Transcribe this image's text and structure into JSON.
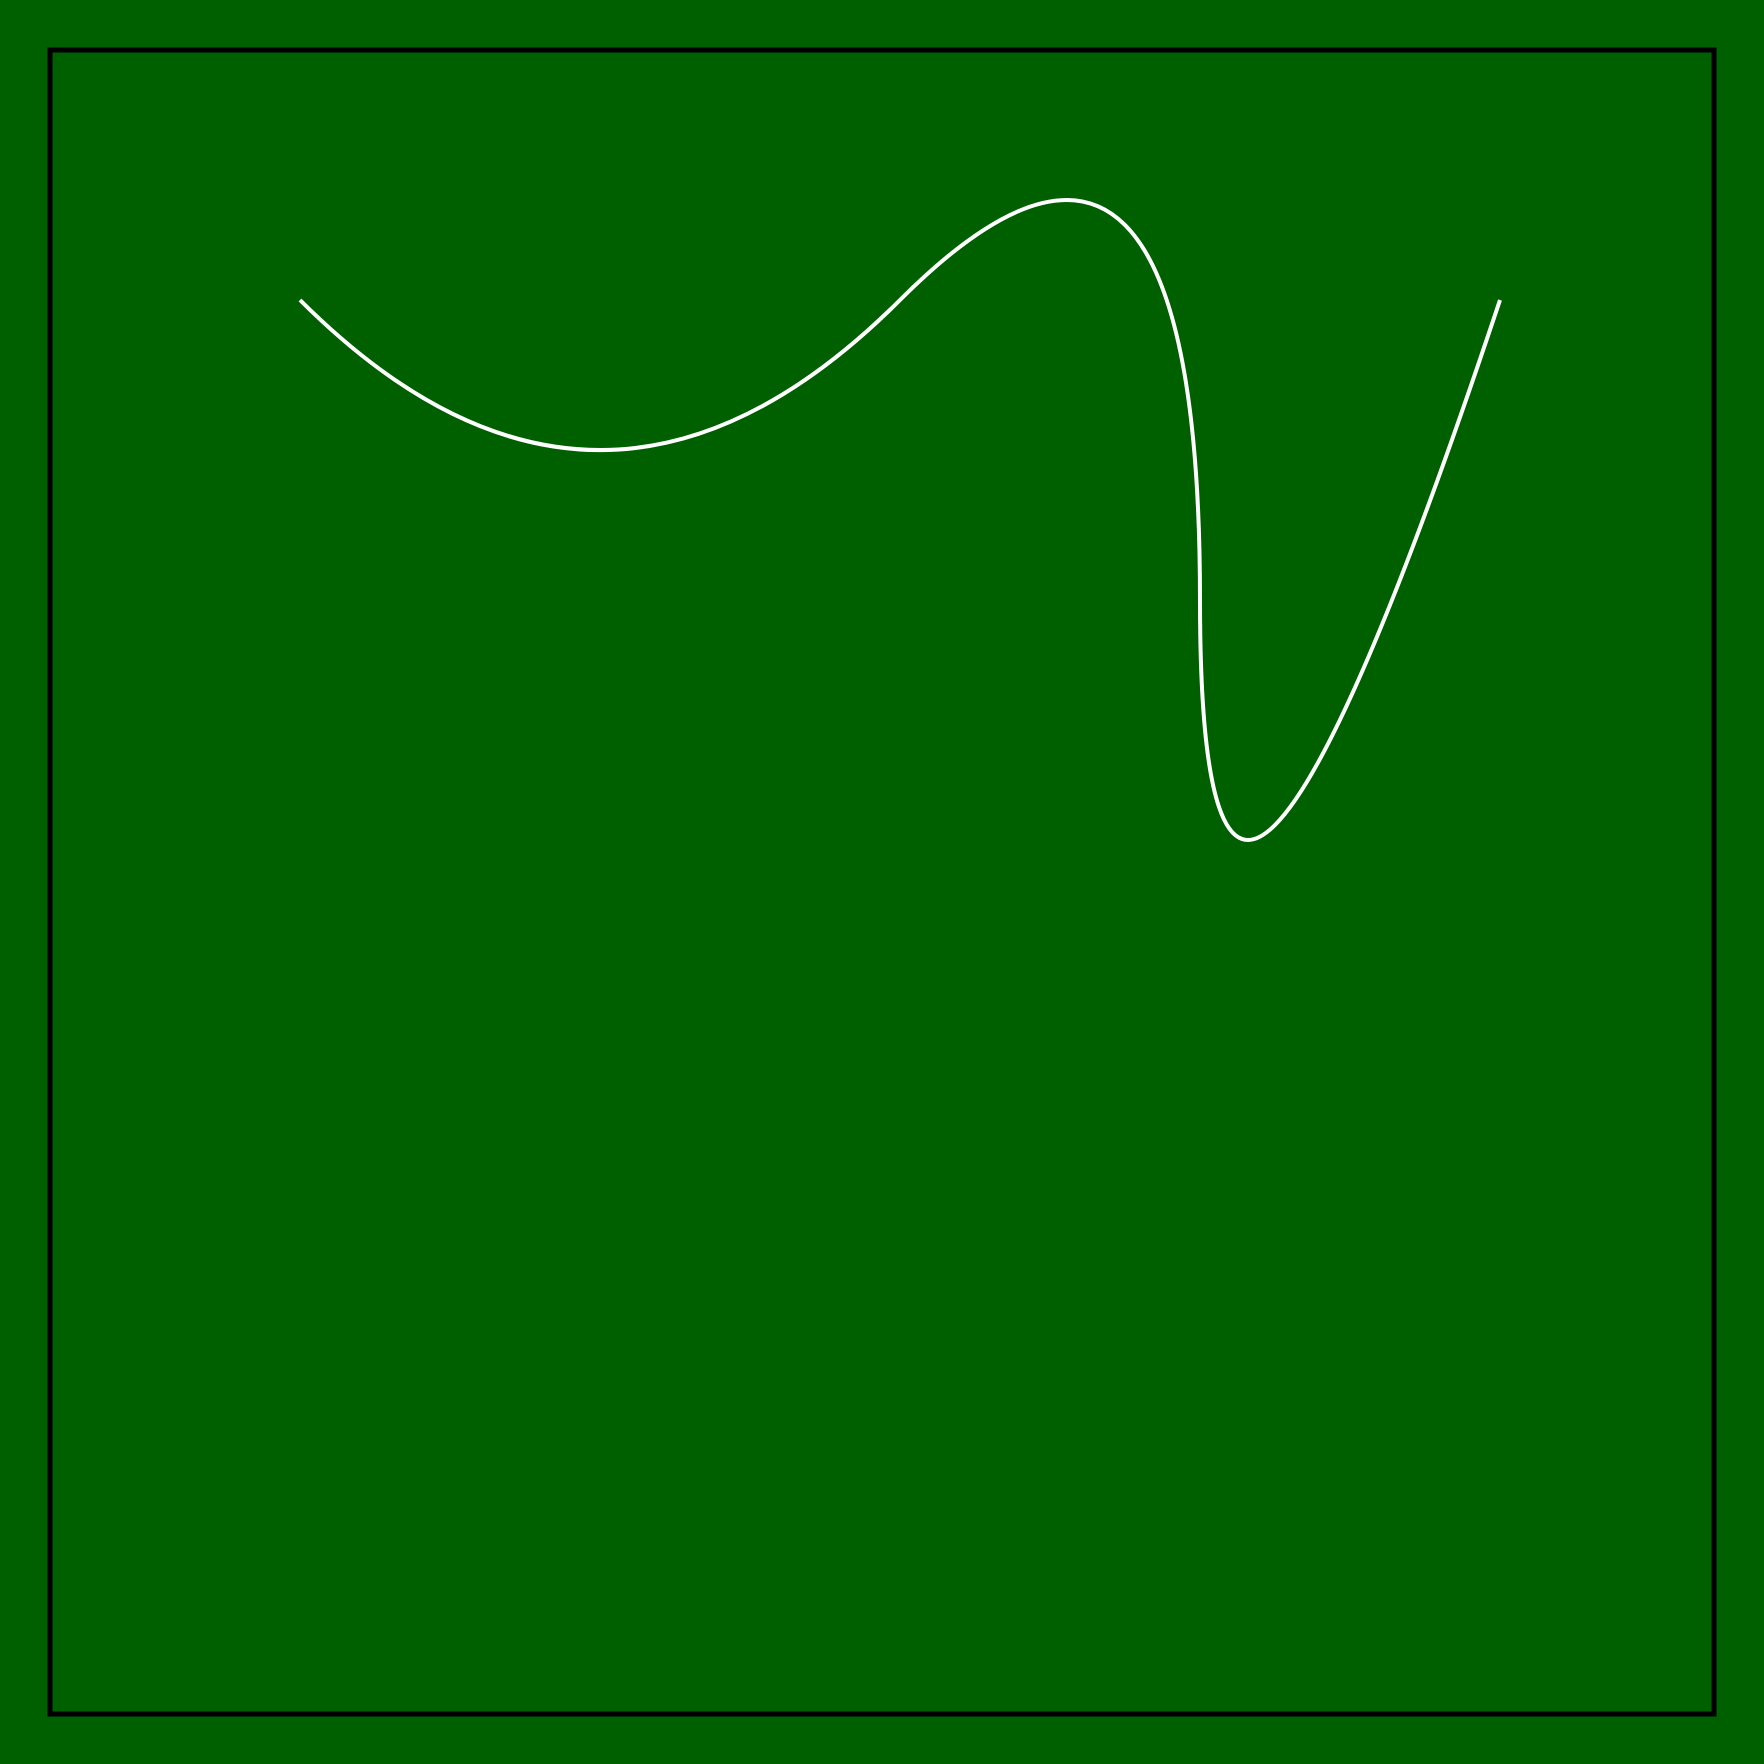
{
  "colors": {
    "background": "#006000",
    "frame": "#000000",
    "curve": "#FFFFFF"
  },
  "elements": {
    "frame": "rectangle-outline",
    "curve": "smooth-wave-line"
  }
}
